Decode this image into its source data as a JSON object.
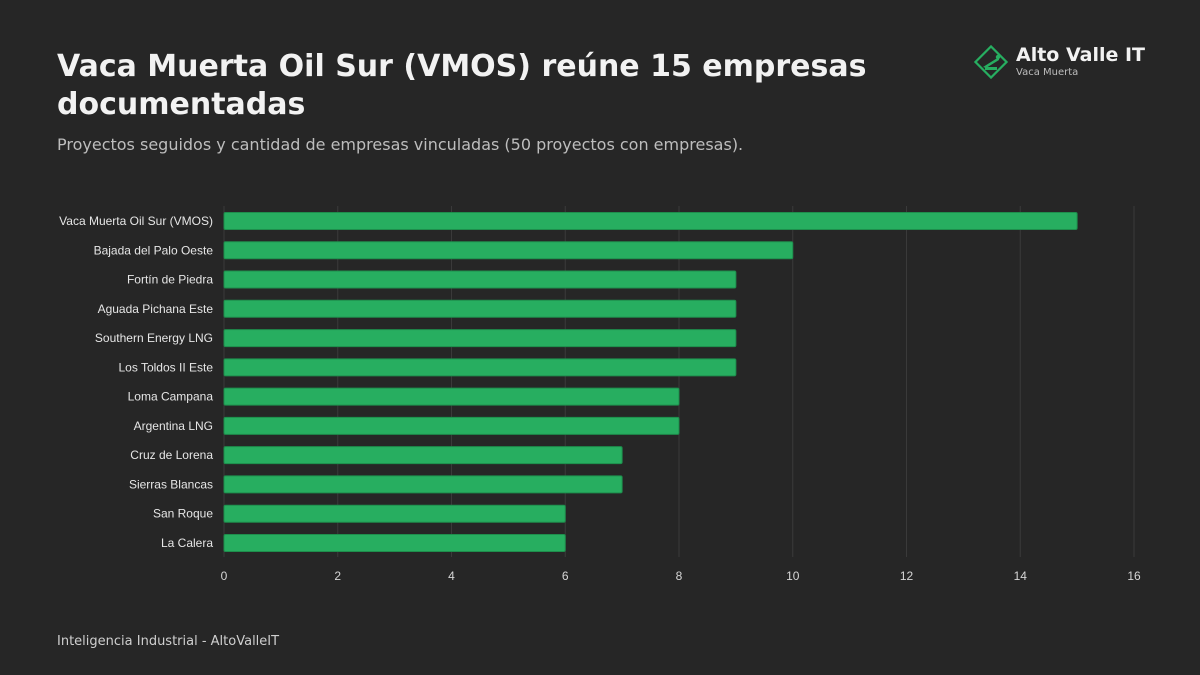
{
  "header": {
    "title": "Vaca Muerta Oil Sur (VMOS) reúne 15 empresas documentadas",
    "subtitle": "Proyectos seguidos y cantidad de empresas vinculadas (50 proyectos con empresas)."
  },
  "brand": {
    "name": "Alto Valle IT",
    "sub": "Vaca Muerta",
    "icon": "oil-pump-diamond-icon",
    "accent_color": "#27ae60"
  },
  "footer": {
    "text": "Inteligencia Industrial - AltoValleIT"
  },
  "chart_data": {
    "type": "bar",
    "orientation": "horizontal",
    "title": "",
    "xlabel": "",
    "ylabel": "",
    "categories": [
      "Vaca Muerta Oil Sur (VMOS)",
      "Bajada del Palo Oeste",
      "Fortín de Piedra",
      "Aguada Pichana Este",
      "Southern Energy LNG",
      "Los Toldos II Este",
      "Loma Campana",
      "Argentina LNG",
      "Cruz de Lorena",
      "Sierras Blancas",
      "San Roque",
      "La Calera"
    ],
    "values": [
      15,
      10,
      9,
      9,
      9,
      9,
      8,
      8,
      7,
      7,
      6,
      6
    ],
    "xlim": [
      0,
      16
    ],
    "xticks": [
      0,
      2,
      4,
      6,
      8,
      10,
      12,
      14,
      16
    ],
    "grid": true,
    "legend": false,
    "bar_color": "#27ae60",
    "bar_border_color": "#1e8e4c"
  }
}
